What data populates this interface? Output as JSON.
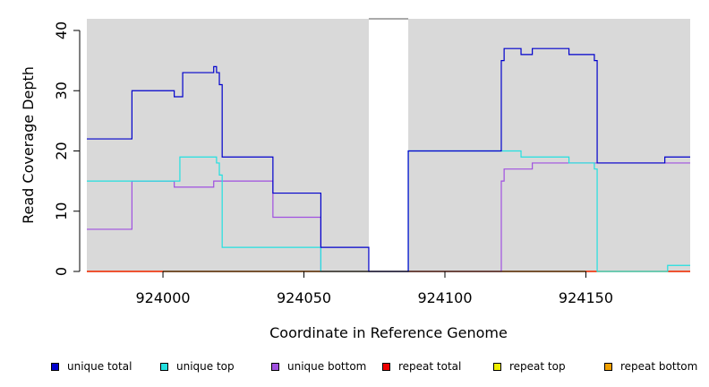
{
  "chart_data": {
    "type": "line",
    "title": "",
    "xlabel": "Coordinate in Reference Genome",
    "ylabel": "Read Coverage Depth",
    "xlim": [
      923973,
      924187
    ],
    "ylim": [
      0,
      40
    ],
    "x_ticks": [
      {
        "value": 924000,
        "label": "924000"
      },
      {
        "value": 924050,
        "label": "924050"
      },
      {
        "value": 924100,
        "label": "924100"
      },
      {
        "value": 924150,
        "label": "924150"
      }
    ],
    "y_ticks": [
      {
        "value": 0,
        "label": "0"
      },
      {
        "value": 10,
        "label": "10"
      },
      {
        "value": 20,
        "label": "20"
      },
      {
        "value": 30,
        "label": "30"
      },
      {
        "value": 40,
        "label": "40"
      }
    ],
    "grid": false,
    "background": "#d9d9d9",
    "gap_region": {
      "from": 924073,
      "to": 924087
    },
    "legend_position": "bottom",
    "series": [
      {
        "name": "unique total",
        "color": "#0000cc",
        "step_points": [
          [
            923973,
            22
          ],
          [
            923989,
            22
          ],
          [
            923989,
            30
          ],
          [
            924004,
            30
          ],
          [
            924004,
            29
          ],
          [
            924007,
            29
          ],
          [
            924007,
            33
          ],
          [
            924018,
            33
          ],
          [
            924018,
            34
          ],
          [
            924019,
            34
          ],
          [
            924019,
            33
          ],
          [
            924020,
            33
          ],
          [
            924020,
            31
          ],
          [
            924021,
            31
          ],
          [
            924021,
            19
          ],
          [
            924039,
            19
          ],
          [
            924039,
            13
          ],
          [
            924056,
            13
          ],
          [
            924056,
            4
          ],
          [
            924073,
            4
          ],
          [
            924073,
            0
          ],
          [
            924087,
            0
          ],
          [
            924087,
            20
          ],
          [
            924120,
            20
          ],
          [
            924120,
            35
          ],
          [
            924121,
            35
          ],
          [
            924121,
            37
          ],
          [
            924127,
            37
          ],
          [
            924127,
            36
          ],
          [
            924131,
            36
          ],
          [
            924131,
            37
          ],
          [
            924144,
            37
          ],
          [
            924144,
            36
          ],
          [
            924153,
            36
          ],
          [
            924153,
            35
          ],
          [
            924154,
            35
          ],
          [
            924154,
            18
          ],
          [
            924178,
            18
          ],
          [
            924178,
            19
          ],
          [
            924187,
            19
          ]
        ]
      },
      {
        "name": "unique top",
        "color": "#22e0e0",
        "step_points": [
          [
            923973,
            15
          ],
          [
            924006,
            15
          ],
          [
            924006,
            19
          ],
          [
            924019,
            19
          ],
          [
            924019,
            18
          ],
          [
            924020,
            18
          ],
          [
            924020,
            16
          ],
          [
            924021,
            16
          ],
          [
            924021,
            4
          ],
          [
            924056,
            4
          ],
          [
            924056,
            0
          ],
          [
            924087,
            0
          ],
          [
            924087,
            20
          ],
          [
            924127,
            20
          ],
          [
            924127,
            19
          ],
          [
            924144,
            19
          ],
          [
            924144,
            18
          ],
          [
            924153,
            18
          ],
          [
            924153,
            17
          ],
          [
            924154,
            17
          ],
          [
            924154,
            0
          ],
          [
            924179,
            0
          ],
          [
            924179,
            1
          ],
          [
            924187,
            1
          ]
        ]
      },
      {
        "name": "unique bottom",
        "color": "#a050e0",
        "step_points": [
          [
            923973,
            7
          ],
          [
            923989,
            7
          ],
          [
            923989,
            15
          ],
          [
            924004,
            15
          ],
          [
            924004,
            14
          ],
          [
            924018,
            14
          ],
          [
            924018,
            15
          ],
          [
            924039,
            15
          ],
          [
            924039,
            9
          ],
          [
            924056,
            9
          ],
          [
            924056,
            0
          ],
          [
            924120,
            0
          ],
          [
            924120,
            15
          ],
          [
            924121,
            15
          ],
          [
            924121,
            17
          ],
          [
            924131,
            17
          ],
          [
            924131,
            18
          ],
          [
            924187,
            18
          ]
        ]
      },
      {
        "name": "repeat total",
        "color": "#ee0000",
        "step_points": [
          [
            923973,
            0
          ],
          [
            924187,
            0
          ]
        ]
      },
      {
        "name": "repeat top",
        "color": "#eeee00",
        "step_points": [
          [
            923973,
            0
          ],
          [
            924187,
            0
          ]
        ]
      },
      {
        "name": "repeat bottom",
        "color": "#f0a000",
        "step_points": [
          [
            923973,
            0
          ],
          [
            924187,
            0
          ]
        ]
      }
    ]
  }
}
